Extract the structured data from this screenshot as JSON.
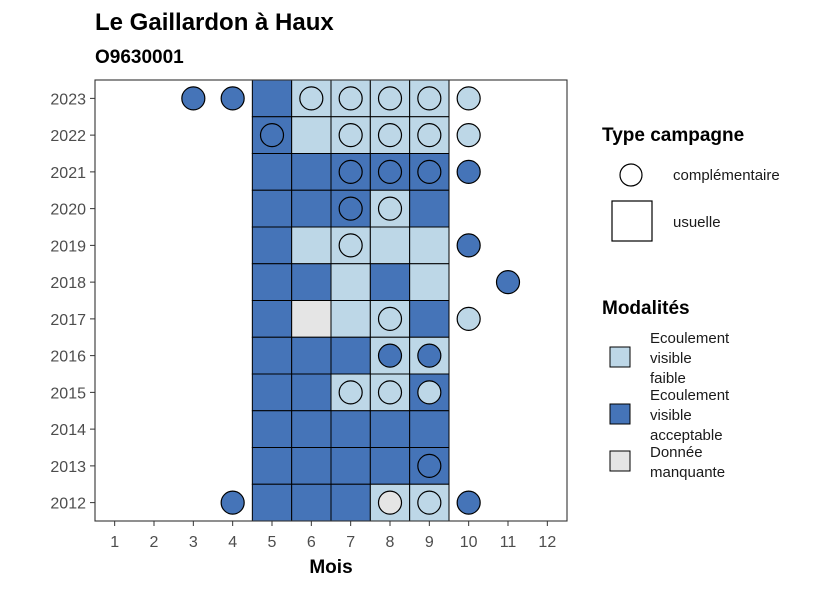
{
  "chart_data": {
    "type": "heatmap",
    "title": "Le Gaillardon à Haux",
    "subtitle": "O9630001",
    "xlabel": "Mois",
    "ylabel": "",
    "x_ticks": [
      1,
      2,
      3,
      4,
      5,
      6,
      7,
      8,
      9,
      10,
      11,
      12
    ],
    "y_ticks": [
      2012,
      2013,
      2014,
      2015,
      2016,
      2017,
      2018,
      2019,
      2020,
      2021,
      2022,
      2023
    ],
    "xlim": [
      0.5,
      12.5
    ],
    "ylim": [
      2011.5,
      2023.5
    ],
    "grid": false,
    "colors": {
      "faible": "#bdd7e7",
      "acceptable": "#4574b8",
      "manquante": "#e5e5e5"
    },
    "legend_type": {
      "title": "Type campagne",
      "items": [
        {
          "label": "complémentaire",
          "shape": "circle"
        },
        {
          "label": "usuelle",
          "shape": "square"
        }
      ]
    },
    "legend_modalites": {
      "title": "Modalités",
      "items": [
        {
          "key": "faible",
          "lines": [
            "Ecoulement",
            "visible",
            "faible"
          ]
        },
        {
          "key": "acceptable",
          "lines": [
            "Ecoulement",
            "visible",
            "acceptable"
          ]
        },
        {
          "key": "manquante",
          "lines": [
            "Donnée",
            "manquante"
          ]
        }
      ]
    },
    "tiles": [
      {
        "year": 2023,
        "month": 5,
        "mod": "acceptable"
      },
      {
        "year": 2023,
        "month": 6,
        "mod": "faible"
      },
      {
        "year": 2023,
        "month": 7,
        "mod": "faible"
      },
      {
        "year": 2023,
        "month": 8,
        "mod": "faible"
      },
      {
        "year": 2023,
        "month": 9,
        "mod": "faible"
      },
      {
        "year": 2022,
        "month": 5,
        "mod": "acceptable"
      },
      {
        "year": 2022,
        "month": 6,
        "mod": "faible"
      },
      {
        "year": 2022,
        "month": 7,
        "mod": "faible"
      },
      {
        "year": 2022,
        "month": 8,
        "mod": "faible"
      },
      {
        "year": 2022,
        "month": 9,
        "mod": "faible"
      },
      {
        "year": 2021,
        "month": 5,
        "mod": "acceptable"
      },
      {
        "year": 2021,
        "month": 6,
        "mod": "acceptable"
      },
      {
        "year": 2021,
        "month": 7,
        "mod": "acceptable"
      },
      {
        "year": 2021,
        "month": 8,
        "mod": "acceptable"
      },
      {
        "year": 2021,
        "month": 9,
        "mod": "acceptable"
      },
      {
        "year": 2020,
        "month": 5,
        "mod": "acceptable"
      },
      {
        "year": 2020,
        "month": 6,
        "mod": "acceptable"
      },
      {
        "year": 2020,
        "month": 7,
        "mod": "acceptable"
      },
      {
        "year": 2020,
        "month": 8,
        "mod": "faible"
      },
      {
        "year": 2020,
        "month": 9,
        "mod": "acceptable"
      },
      {
        "year": 2019,
        "month": 5,
        "mod": "acceptable"
      },
      {
        "year": 2019,
        "month": 6,
        "mod": "faible"
      },
      {
        "year": 2019,
        "month": 7,
        "mod": "faible"
      },
      {
        "year": 2019,
        "month": 8,
        "mod": "faible"
      },
      {
        "year": 2019,
        "month": 9,
        "mod": "faible"
      },
      {
        "year": 2018,
        "month": 5,
        "mod": "acceptable"
      },
      {
        "year": 2018,
        "month": 6,
        "mod": "acceptable"
      },
      {
        "year": 2018,
        "month": 7,
        "mod": "faible"
      },
      {
        "year": 2018,
        "month": 8,
        "mod": "acceptable"
      },
      {
        "year": 2018,
        "month": 9,
        "mod": "faible"
      },
      {
        "year": 2017,
        "month": 5,
        "mod": "acceptable"
      },
      {
        "year": 2017,
        "month": 6,
        "mod": "manquante"
      },
      {
        "year": 2017,
        "month": 7,
        "mod": "faible"
      },
      {
        "year": 2017,
        "month": 8,
        "mod": "faible"
      },
      {
        "year": 2017,
        "month": 9,
        "mod": "acceptable"
      },
      {
        "year": 2016,
        "month": 5,
        "mod": "acceptable"
      },
      {
        "year": 2016,
        "month": 6,
        "mod": "acceptable"
      },
      {
        "year": 2016,
        "month": 7,
        "mod": "acceptable"
      },
      {
        "year": 2016,
        "month": 8,
        "mod": "faible"
      },
      {
        "year": 2016,
        "month": 9,
        "mod": "faible"
      },
      {
        "year": 2015,
        "month": 5,
        "mod": "acceptable"
      },
      {
        "year": 2015,
        "month": 6,
        "mod": "acceptable"
      },
      {
        "year": 2015,
        "month": 7,
        "mod": "faible"
      },
      {
        "year": 2015,
        "month": 8,
        "mod": "faible"
      },
      {
        "year": 2015,
        "month": 9,
        "mod": "acceptable"
      },
      {
        "year": 2014,
        "month": 5,
        "mod": "acceptable"
      },
      {
        "year": 2014,
        "month": 6,
        "mod": "acceptable"
      },
      {
        "year": 2014,
        "month": 7,
        "mod": "acceptable"
      },
      {
        "year": 2014,
        "month": 8,
        "mod": "acceptable"
      },
      {
        "year": 2014,
        "month": 9,
        "mod": "acceptable"
      },
      {
        "year": 2013,
        "month": 5,
        "mod": "acceptable"
      },
      {
        "year": 2013,
        "month": 6,
        "mod": "acceptable"
      },
      {
        "year": 2013,
        "month": 7,
        "mod": "acceptable"
      },
      {
        "year": 2013,
        "month": 8,
        "mod": "acceptable"
      },
      {
        "year": 2013,
        "month": 9,
        "mod": "acceptable"
      },
      {
        "year": 2012,
        "month": 5,
        "mod": "acceptable"
      },
      {
        "year": 2012,
        "month": 6,
        "mod": "acceptable"
      },
      {
        "year": 2012,
        "month": 7,
        "mod": "acceptable"
      },
      {
        "year": 2012,
        "month": 8,
        "mod": "faible"
      },
      {
        "year": 2012,
        "month": 9,
        "mod": "faible"
      }
    ],
    "points": [
      {
        "year": 2023,
        "month": 3,
        "mod": "acceptable"
      },
      {
        "year": 2023,
        "month": 4,
        "mod": "acceptable"
      },
      {
        "year": 2023,
        "month": 6,
        "mod": "faible"
      },
      {
        "year": 2023,
        "month": 7,
        "mod": "faible"
      },
      {
        "year": 2023,
        "month": 8,
        "mod": "faible"
      },
      {
        "year": 2023,
        "month": 9,
        "mod": "faible"
      },
      {
        "year": 2023,
        "month": 10,
        "mod": "faible"
      },
      {
        "year": 2022,
        "month": 5,
        "mod": "acceptable"
      },
      {
        "year": 2022,
        "month": 7,
        "mod": "faible"
      },
      {
        "year": 2022,
        "month": 8,
        "mod": "faible"
      },
      {
        "year": 2022,
        "month": 9,
        "mod": "faible"
      },
      {
        "year": 2022,
        "month": 10,
        "mod": "faible"
      },
      {
        "year": 2021,
        "month": 7,
        "mod": "acceptable"
      },
      {
        "year": 2021,
        "month": 8,
        "mod": "acceptable"
      },
      {
        "year": 2021,
        "month": 9,
        "mod": "acceptable"
      },
      {
        "year": 2021,
        "month": 10,
        "mod": "acceptable"
      },
      {
        "year": 2020,
        "month": 7,
        "mod": "acceptable"
      },
      {
        "year": 2020,
        "month": 8,
        "mod": "faible"
      },
      {
        "year": 2019,
        "month": 7,
        "mod": "faible"
      },
      {
        "year": 2019,
        "month": 10,
        "mod": "acceptable"
      },
      {
        "year": 2018,
        "month": 11,
        "mod": "acceptable"
      },
      {
        "year": 2017,
        "month": 8,
        "mod": "faible"
      },
      {
        "year": 2017,
        "month": 10,
        "mod": "faible"
      },
      {
        "year": 2016,
        "month": 8,
        "mod": "acceptable"
      },
      {
        "year": 2016,
        "month": 9,
        "mod": "acceptable"
      },
      {
        "year": 2015,
        "month": 7,
        "mod": "faible"
      },
      {
        "year": 2015,
        "month": 8,
        "mod": "faible"
      },
      {
        "year": 2015,
        "month": 9,
        "mod": "faible"
      },
      {
        "year": 2013,
        "month": 9,
        "mod": "acceptable"
      },
      {
        "year": 2012,
        "month": 4,
        "mod": "acceptable"
      },
      {
        "year": 2012,
        "month": 8,
        "mod": "manquante"
      },
      {
        "year": 2012,
        "month": 9,
        "mod": "faible"
      },
      {
        "year": 2012,
        "month": 10,
        "mod": "acceptable"
      }
    ]
  }
}
